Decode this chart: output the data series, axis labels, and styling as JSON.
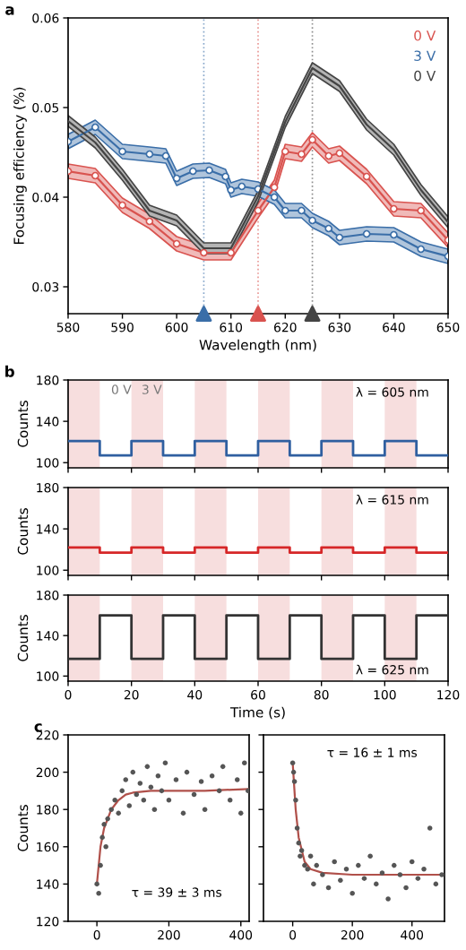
{
  "chart_data": [
    {
      "type": "line",
      "title": "a",
      "xlabel": "Wavelength (nm)",
      "ylabel": "Focusing efficiency (%)",
      "xlim": [
        580,
        650
      ],
      "xticks": [
        580,
        590,
        600,
        610,
        620,
        630,
        640,
        650
      ],
      "ylim": [
        0.027,
        0.06
      ],
      "yticks": [
        0.03,
        0.04,
        0.05,
        0.06
      ],
      "legend": "top right",
      "grid": false,
      "series": [
        {
          "name": "0 V",
          "color": "#d9534f",
          "marker": "circle",
          "x": [
            580,
            585,
            590,
            595,
            600,
            605,
            610,
            615,
            618,
            620,
            623,
            625,
            628,
            630,
            635,
            640,
            645,
            650
          ],
          "values": [
            0.0429,
            0.0424,
            0.0391,
            0.0373,
            0.0348,
            0.0338,
            0.0338,
            0.0385,
            0.0411,
            0.0451,
            0.0448,
            0.0464,
            0.0446,
            0.0449,
            0.0423,
            0.0387,
            0.0385,
            0.0352
          ],
          "lower": [
            0.0421,
            0.0416,
            0.0383,
            0.0365,
            0.034,
            0.033,
            0.033,
            0.0377,
            0.0403,
            0.0443,
            0.044,
            0.0456,
            0.0438,
            0.0441,
            0.0415,
            0.0379,
            0.0377,
            0.0344
          ],
          "upper": [
            0.0437,
            0.0432,
            0.0399,
            0.0381,
            0.0356,
            0.0346,
            0.0346,
            0.0393,
            0.0419,
            0.0459,
            0.0456,
            0.0472,
            0.0454,
            0.0457,
            0.0431,
            0.0395,
            0.0393,
            0.036
          ]
        },
        {
          "name": "3 V",
          "color": "#3a6ea8",
          "marker": "circle",
          "x": [
            580,
            585,
            590,
            595,
            598,
            600,
            603,
            606,
            609,
            610,
            612,
            615,
            618,
            620,
            623,
            625,
            628,
            630,
            635,
            640,
            645,
            650
          ],
          "values": [
            0.0462,
            0.0478,
            0.0451,
            0.0448,
            0.0446,
            0.0421,
            0.0429,
            0.043,
            0.0423,
            0.0408,
            0.0412,
            0.0409,
            0.04,
            0.0385,
            0.0385,
            0.0374,
            0.0365,
            0.0355,
            0.0359,
            0.0358,
            0.0342,
            0.0334
          ],
          "lower": [
            0.0454,
            0.047,
            0.0443,
            0.044,
            0.0438,
            0.0413,
            0.0421,
            0.0422,
            0.0415,
            0.04,
            0.0404,
            0.0401,
            0.0392,
            0.0377,
            0.0377,
            0.0366,
            0.0357,
            0.0347,
            0.0351,
            0.035,
            0.0334,
            0.0326
          ],
          "upper": [
            0.047,
            0.0486,
            0.0459,
            0.0456,
            0.0454,
            0.0429,
            0.0437,
            0.0438,
            0.0431,
            0.0416,
            0.042,
            0.0417,
            0.0408,
            0.0393,
            0.0393,
            0.0382,
            0.0373,
            0.0363,
            0.0367,
            0.0366,
            0.035,
            0.0342
          ]
        },
        {
          "name": "0 V",
          "color": "#444444",
          "marker": "none",
          "x": [
            580,
            585,
            590,
            595,
            600,
            605,
            610,
            615,
            620,
            625,
            630,
            635,
            640,
            645,
            650
          ],
          "values": [
            0.0485,
            0.0461,
            0.0425,
            0.0385,
            0.0374,
            0.0343,
            0.0343,
            0.0401,
            0.0484,
            0.0544,
            0.0524,
            0.0481,
            0.0453,
            0.0408,
            0.0372
          ],
          "lower": [
            0.0479,
            0.0455,
            0.0419,
            0.0379,
            0.0368,
            0.0337,
            0.0337,
            0.0395,
            0.0478,
            0.0538,
            0.0518,
            0.0475,
            0.0447,
            0.0402,
            0.0366
          ],
          "upper": [
            0.0491,
            0.0467,
            0.0431,
            0.0391,
            0.038,
            0.0349,
            0.0349,
            0.0407,
            0.049,
            0.055,
            0.053,
            0.0487,
            0.0459,
            0.0414,
            0.0378
          ]
        }
      ],
      "ref_lines": [
        {
          "axis": "x",
          "value": 605,
          "color": "#3a6ea8",
          "line_style": "dotted"
        },
        {
          "axis": "x",
          "value": 615,
          "color": "#d9534f",
          "line_style": "dotted"
        },
        {
          "axis": "x",
          "value": 625,
          "color": "#444444",
          "line_style": "dotted"
        }
      ]
    },
    {
      "type": "step",
      "title": "b",
      "ylabel": "Counts",
      "xlim": [
        0,
        120
      ],
      "xticks": [
        0,
        20,
        40,
        60,
        80,
        100,
        120
      ],
      "ylim": [
        95,
        180
      ],
      "yticks": [
        100,
        140,
        180
      ],
      "tick_labels": "y",
      "x": [
        0,
        10,
        20,
        30,
        40,
        50,
        60,
        70,
        80,
        90,
        100,
        110,
        120
      ],
      "series": [
        {
          "color": "#2f5fa0",
          "values": [
            121,
            107,
            121,
            107,
            121,
            107,
            121,
            107,
            121,
            107,
            121,
            107,
            107
          ]
        }
      ],
      "bands": [
        {
          "axis": "x",
          "from": 0,
          "to": 10,
          "color": "#f7dede"
        },
        {
          "axis": "x",
          "from": 20,
          "to": 30,
          "color": "#f7dede"
        },
        {
          "axis": "x",
          "from": 40,
          "to": 50,
          "color": "#f7dede"
        },
        {
          "axis": "x",
          "from": 60,
          "to": 70,
          "color": "#f7dede"
        },
        {
          "axis": "x",
          "from": 80,
          "to": 90,
          "color": "#f7dede"
        },
        {
          "axis": "x",
          "from": 100,
          "to": 110,
          "color": "#f7dede"
        }
      ],
      "annotations": [
        "0 V",
        "3 V",
        "λ = 605 nm"
      ]
    },
    {
      "type": "step",
      "ylabel": "Counts",
      "xlim": [
        0,
        120
      ],
      "xticks": [
        0,
        20,
        40,
        60,
        80,
        100,
        120
      ],
      "ylim": [
        95,
        180
      ],
      "yticks": [
        100,
        140,
        180
      ],
      "tick_labels": "y",
      "x": [
        0,
        10,
        20,
        30,
        40,
        50,
        60,
        70,
        80,
        90,
        100,
        110,
        120
      ],
      "series": [
        {
          "color": "#d62728",
          "values": [
            122,
            117,
            122,
            117,
            122,
            117,
            122,
            117,
            122,
            117,
            122,
            117,
            117
          ]
        }
      ],
      "bands": [
        {
          "axis": "x",
          "from": 0,
          "to": 10,
          "color": "#f7dede"
        },
        {
          "axis": "x",
          "from": 20,
          "to": 30,
          "color": "#f7dede"
        },
        {
          "axis": "x",
          "from": 40,
          "to": 50,
          "color": "#f7dede"
        },
        {
          "axis": "x",
          "from": 60,
          "to": 70,
          "color": "#f7dede"
        },
        {
          "axis": "x",
          "from": 80,
          "to": 90,
          "color": "#f7dede"
        },
        {
          "axis": "x",
          "from": 100,
          "to": 110,
          "color": "#f7dede"
        }
      ],
      "annotations": [
        "λ = 615 nm"
      ]
    },
    {
      "type": "step",
      "xlabel": "Time (s)",
      "ylabel": "Counts",
      "xlim": [
        0,
        120
      ],
      "xticks": [
        0,
        20,
        40,
        60,
        80,
        100,
        120
      ],
      "ylim": [
        95,
        180
      ],
      "yticks": [
        100,
        140,
        180
      ],
      "x": [
        0,
        10,
        20,
        30,
        40,
        50,
        60,
        70,
        80,
        90,
        100,
        110,
        120
      ],
      "series": [
        {
          "color": "#333333",
          "values": [
            117,
            160,
            117,
            160,
            117,
            160,
            117,
            160,
            117,
            160,
            117,
            160,
            160
          ]
        }
      ],
      "bands": [
        {
          "axis": "x",
          "from": 0,
          "to": 10,
          "color": "#f7dede"
        },
        {
          "axis": "x",
          "from": 20,
          "to": 30,
          "color": "#f7dede"
        },
        {
          "axis": "x",
          "from": 40,
          "to": 50,
          "color": "#f7dede"
        },
        {
          "axis": "x",
          "from": 60,
          "to": 70,
          "color": "#f7dede"
        },
        {
          "axis": "x",
          "from": 80,
          "to": 90,
          "color": "#f7dede"
        },
        {
          "axis": "x",
          "from": 100,
          "to": 110,
          "color": "#f7dede"
        }
      ],
      "annotations": [
        "λ = 625 nm"
      ]
    },
    {
      "type": "scatter",
      "title": "c",
      "ylabel": "Counts",
      "xlim": [
        -80,
        423
      ],
      "xticks": [
        0,
        200,
        400
      ],
      "ylim": [
        120,
        220
      ],
      "yticks": [
        120,
        140,
        160,
        180,
        200,
        220
      ],
      "series": [
        {
          "color": "#555555",
          "x": [
            0,
            5,
            10,
            15,
            20,
            25,
            30,
            40,
            50,
            60,
            70,
            80,
            90,
            100,
            110,
            120,
            130,
            140,
            150,
            160,
            170,
            180,
            190,
            200,
            220,
            240,
            250,
            270,
            290,
            300,
            320,
            340,
            350,
            370,
            390,
            400,
            410,
            420
          ],
          "values": [
            140,
            135,
            150,
            165,
            172,
            160,
            175,
            180,
            185,
            178,
            190,
            196,
            182,
            200,
            188,
            194,
            185,
            203,
            192,
            180,
            198,
            190,
            205,
            185,
            196,
            178,
            200,
            188,
            195,
            180,
            198,
            190,
            203,
            185,
            196,
            178,
            205,
            190
          ]
        },
        {
          "type": "line",
          "marker": "none",
          "color": "#b0504a",
          "x": [
            0,
            10,
            20,
            40,
            60,
            80,
            100,
            150,
            200,
            300,
            420
          ],
          "values": [
            140,
            160,
            170,
            180,
            185,
            188,
            189,
            190,
            190,
            190,
            191
          ]
        }
      ],
      "annotations": [
        "τ = 39 ± 3 ms"
      ]
    },
    {
      "type": "scatter",
      "xlim": [
        -98,
        509
      ],
      "xticks": [
        0,
        200,
        400
      ],
      "ylim": [
        120,
        220
      ],
      "yticks": [
        120,
        140,
        160,
        180,
        200,
        220
      ],
      "tick_labels": "x",
      "series": [
        {
          "color": "#555555",
          "x": [
            0,
            3,
            6,
            10,
            15,
            20,
            25,
            30,
            40,
            50,
            60,
            70,
            80,
            100,
            120,
            140,
            160,
            180,
            200,
            220,
            240,
            260,
            280,
            300,
            320,
            340,
            360,
            380,
            400,
            420,
            440,
            460,
            480,
            500
          ],
          "values": [
            205,
            200,
            195,
            185,
            170,
            162,
            155,
            158,
            150,
            148,
            155,
            140,
            150,
            145,
            138,
            152,
            142,
            148,
            135,
            150,
            143,
            155,
            140,
            146,
            132,
            150,
            145,
            138,
            152,
            143,
            148,
            170,
            140,
            145
          ]
        },
        {
          "type": "line",
          "marker": "none",
          "color": "#b0504a",
          "x": [
            0,
            10,
            20,
            40,
            60,
            100,
            200,
            300,
            400,
            500
          ],
          "values": [
            205,
            180,
            165,
            152,
            148,
            146,
            145,
            145,
            145,
            145
          ]
        }
      ],
      "annotations": [
        "τ = 16 ± 1 ms"
      ]
    }
  ]
}
